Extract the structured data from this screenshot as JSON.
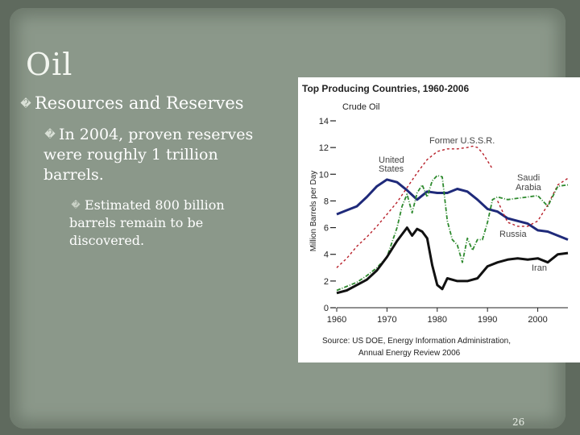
{
  "slide": {
    "title": "Oil",
    "bullets": [
      {
        "level": 1,
        "marker": "�",
        "text": "Resources and Reserves"
      },
      {
        "level": 2,
        "marker": "�",
        "text": "In 2004, proven reserves were roughly 1 trillion barrels."
      },
      {
        "level": 3,
        "marker": "�",
        "text": "Estimated 800 billion barrels remain to be discovered."
      }
    ],
    "slide_number": "26"
  },
  "colors": {
    "background": "#8b988a",
    "united_states": "#1f2a7a",
    "former_ussr": "#b8202a",
    "saudi_arabia": "#2e8a2e",
    "iran": "#111111"
  },
  "chart_data": {
    "type": "line",
    "title": "Top Producing Countries, 1960-2006",
    "subtitle": "Crude Oil",
    "xlabel": "",
    "ylabel": "Million Barrels per Day",
    "xlim": [
      1960,
      2006
    ],
    "ylim": [
      0,
      14
    ],
    "xticks": [
      "1960",
      "1970",
      "1980",
      "1990",
      "2000"
    ],
    "yticks": [
      "0",
      "2",
      "4",
      "6",
      "8",
      "10",
      "12",
      "14"
    ],
    "source": "Source: US DOE, Energy Information Administration, Annual Energy Review 2006",
    "series": [
      {
        "name": "United States",
        "color_key": "united_states",
        "dash": "solid",
        "x": [
          1960,
          1962,
          1964,
          1966,
          1968,
          1970,
          1972,
          1974,
          1976,
          1978,
          1980,
          1982,
          1984,
          1986,
          1988,
          1990,
          1992,
          1994,
          1996,
          1998,
          2000,
          2002,
          2004,
          2006
        ],
        "y": [
          7.0,
          7.3,
          7.6,
          8.3,
          9.1,
          9.6,
          9.4,
          8.8,
          8.1,
          8.7,
          8.6,
          8.6,
          8.9,
          8.7,
          8.1,
          7.4,
          7.2,
          6.7,
          6.5,
          6.3,
          5.8,
          5.7,
          5.4,
          5.1
        ]
      },
      {
        "name": "Former U.S.S.R.",
        "color_key": "former_ussr",
        "dash": "dashed",
        "x": [
          1960,
          1962,
          1964,
          1966,
          1968,
          1970,
          1972,
          1974,
          1976,
          1978,
          1980,
          1982,
          1984,
          1986,
          1987,
          1988,
          1989,
          1990,
          1991
        ],
        "y": [
          3.0,
          3.7,
          4.6,
          5.3,
          6.1,
          7.0,
          7.9,
          9.0,
          10.1,
          11.1,
          11.7,
          11.9,
          11.9,
          12.0,
          12.1,
          12.0,
          11.6,
          11.0,
          10.4
        ]
      },
      {
        "name": "Russia",
        "color_key": "former_ussr",
        "dash": "dashed",
        "x": [
          1992,
          1993,
          1994,
          1996,
          1998,
          2000,
          2002,
          2004,
          2006
        ],
        "y": [
          8.0,
          7.2,
          6.4,
          6.1,
          6.1,
          6.5,
          7.7,
          9.2,
          9.7
        ]
      },
      {
        "name": "Saudi Arabia",
        "color_key": "saudi_arabia",
        "dash": "dashdot",
        "x": [
          1960,
          1962,
          1964,
          1966,
          1968,
          1970,
          1972,
          1973,
          1974,
          1975,
          1976,
          1977,
          1978,
          1979,
          1980,
          1981,
          1982,
          1983,
          1984,
          1985,
          1986,
          1987,
          1988,
          1989,
          1990,
          1991,
          1992,
          1994,
          1996,
          1998,
          2000,
          2002,
          2004,
          2006
        ],
        "y": [
          1.3,
          1.6,
          1.9,
          2.4,
          3.0,
          3.8,
          6.0,
          7.6,
          8.5,
          7.1,
          8.6,
          9.2,
          8.3,
          9.5,
          9.9,
          9.8,
          6.5,
          5.1,
          4.7,
          3.4,
          5.2,
          4.3,
          5.1,
          5.1,
          6.4,
          8.1,
          8.3,
          8.1,
          8.2,
          8.3,
          8.4,
          7.6,
          9.1,
          9.2
        ]
      },
      {
        "name": "Iran",
        "color_key": "iran",
        "dash": "solid",
        "x": [
          1960,
          1962,
          1964,
          1966,
          1968,
          1970,
          1972,
          1974,
          1975,
          1976,
          1977,
          1978,
          1979,
          1980,
          1981,
          1982,
          1984,
          1986,
          1988,
          1990,
          1992,
          1994,
          1996,
          1998,
          2000,
          2002,
          2004,
          2006
        ],
        "y": [
          1.1,
          1.3,
          1.7,
          2.1,
          2.8,
          3.8,
          5.0,
          6.0,
          5.4,
          5.9,
          5.7,
          5.2,
          3.2,
          1.7,
          1.4,
          2.2,
          2.0,
          2.0,
          2.2,
          3.1,
          3.4,
          3.6,
          3.7,
          3.6,
          3.7,
          3.4,
          4.0,
          4.1
        ]
      }
    ],
    "series_labels": [
      {
        "text": "Former U.S.S.R.",
        "color_key": "former_ussr"
      },
      {
        "text": "United",
        "color_key": "united_states"
      },
      {
        "text": "States",
        "color_key": "united_states"
      },
      {
        "text": "Saudi",
        "color_key": "saudi_arabia"
      },
      {
        "text": "Arabia",
        "color_key": "saudi_arabia"
      },
      {
        "text": "Russia",
        "color_key": "former_ussr"
      },
      {
        "text": "Iran",
        "color_key": "iran"
      }
    ]
  }
}
